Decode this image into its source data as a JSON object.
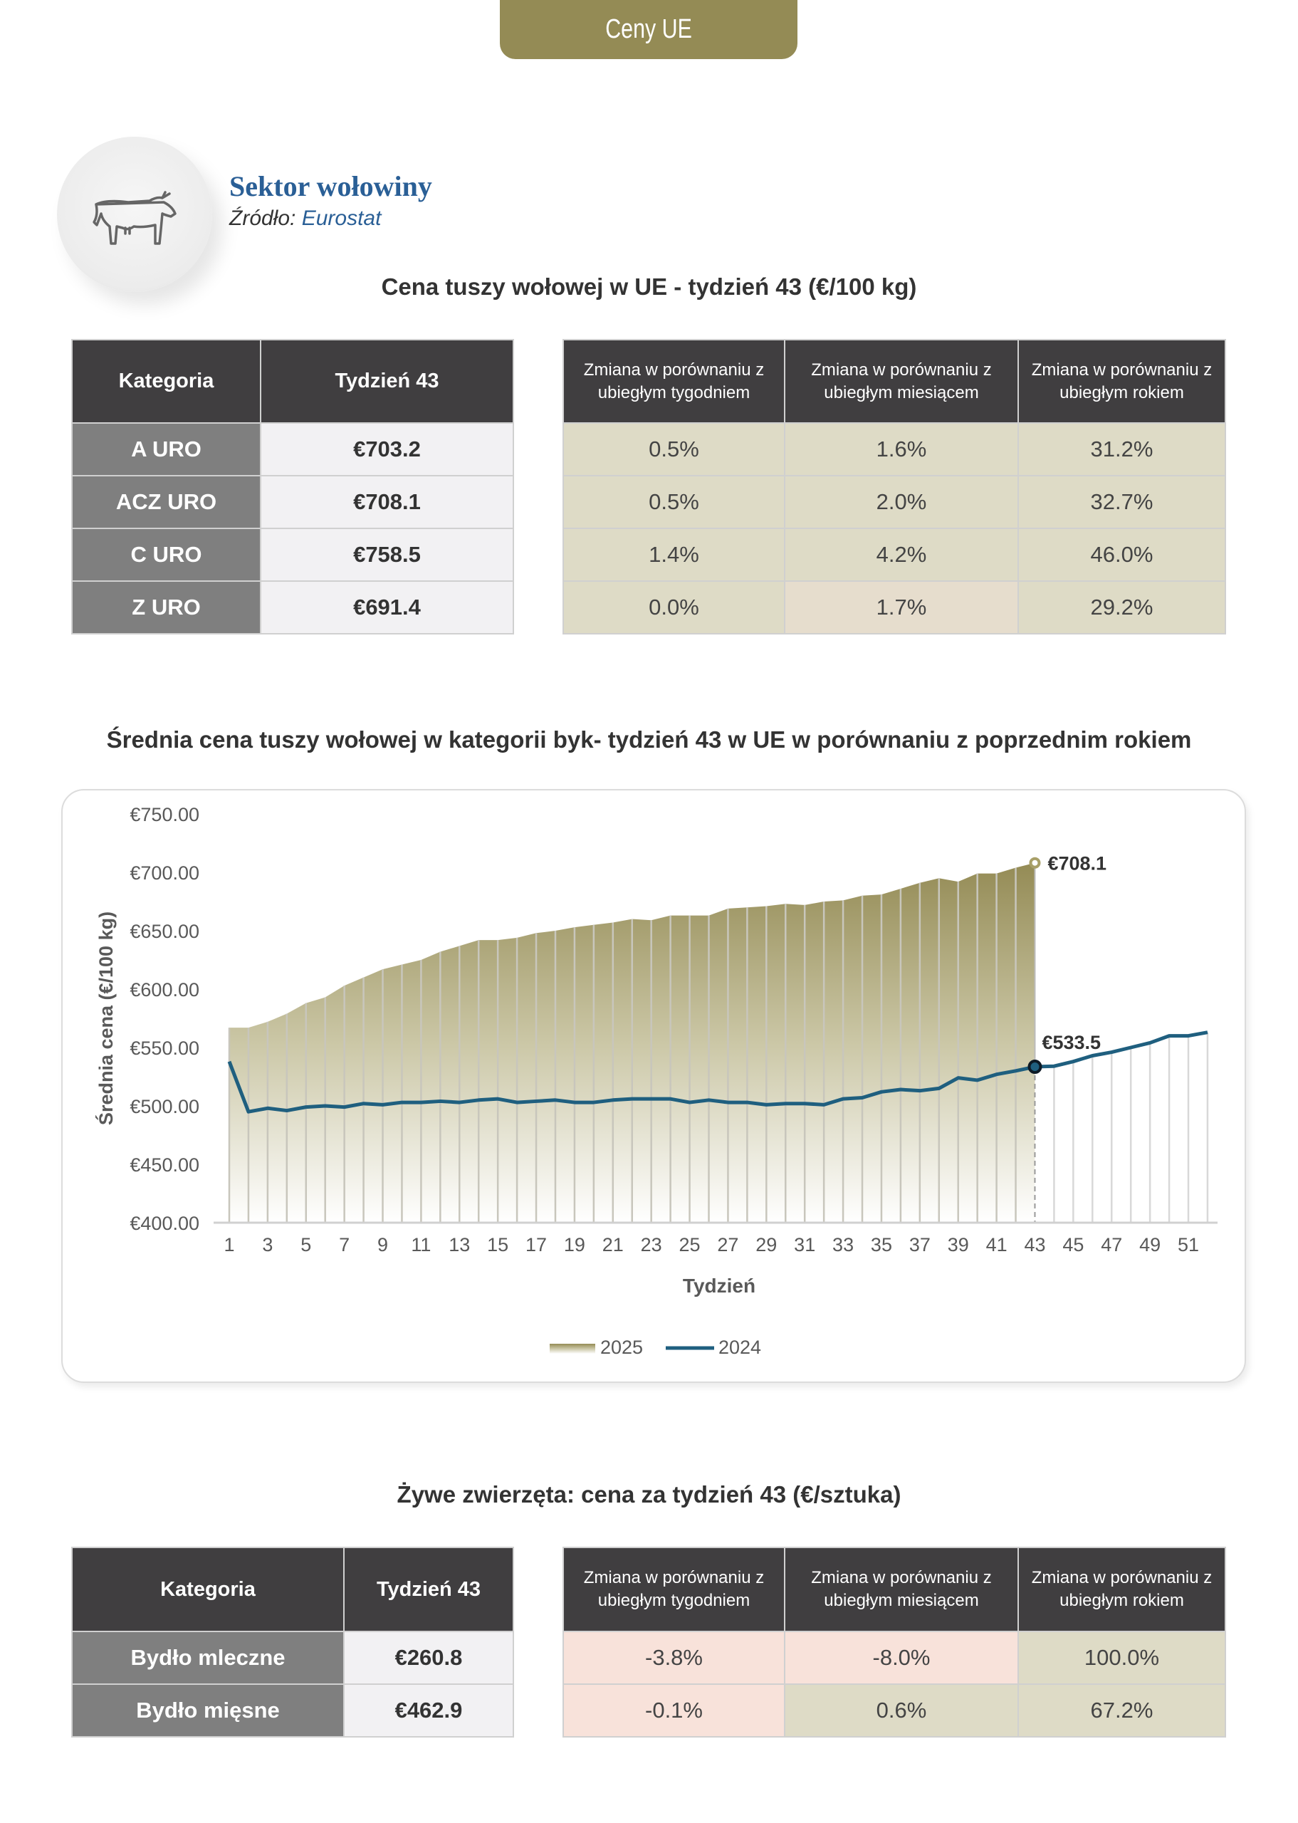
{
  "header": {
    "tab_label": "Ceny UE"
  },
  "sector": {
    "title": "Sektor wołowiny",
    "source_label": "Źródło:",
    "source_name": "Eurostat",
    "icon": "cow-icon"
  },
  "carcass_table": {
    "title": "Cena tuszy wołowej w UE - tydzień 43 (€/100 kg)",
    "headers": [
      "Kategoria",
      "Tydzień 43",
      "Zmiana w porównaniu z ubiegłym tygodniem",
      "Zmiana w porównaniu z ubiegłym miesiącem",
      "Zmiana w porównaniu z ubiegłym rokiem"
    ],
    "rows": [
      {
        "category": "A URO",
        "price": "€703.2",
        "week": "0.5%",
        "month": "1.6%",
        "year": "31.2%"
      },
      {
        "category": "ACZ URO",
        "price": "€708.1",
        "week": "0.5%",
        "month": "2.0%",
        "year": "32.7%"
      },
      {
        "category": "C URO",
        "price": "€758.5",
        "week": "1.4%",
        "month": "4.2%",
        "year": "46.0%"
      },
      {
        "category": "Z URO",
        "price": "€691.4",
        "week": "0.0%",
        "month": "1.7%",
        "year": "29.2%"
      }
    ]
  },
  "chart_data": {
    "type": "area+line",
    "title": "Średnia cena tuszy wołowej w kategorii byk- tydzień 43 w UE w porównaniu z poprzednim rokiem",
    "xlabel": "Tydzień",
    "ylabel": "Średnia cena (€/100 kg)",
    "ylim": [
      400,
      750
    ],
    "yticks": [
      "€400.00",
      "€450.00",
      "€500.00",
      "€550.00",
      "€600.00",
      "€650.00",
      "€700.00",
      "€750.00"
    ],
    "ytick_values": [
      400,
      450,
      500,
      550,
      600,
      650,
      700,
      750
    ],
    "xticks": [
      1,
      3,
      5,
      7,
      9,
      11,
      13,
      15,
      17,
      19,
      21,
      23,
      25,
      27,
      29,
      31,
      33,
      35,
      37,
      39,
      41,
      43,
      45,
      47,
      49,
      51
    ],
    "legend": [
      "2025",
      "2024"
    ],
    "legend_position": "bottom",
    "series": [
      {
        "name": "2025",
        "kind": "area",
        "color": "#948b55",
        "values": [
          567,
          567,
          572,
          579,
          588,
          593,
          603,
          610,
          617,
          621,
          625,
          632,
          637,
          642,
          642,
          644,
          648,
          650,
          653,
          655,
          657,
          660,
          659,
          663,
          663,
          663,
          669,
          670,
          671,
          673,
          672,
          675,
          676,
          680,
          681,
          686,
          691,
          695,
          692,
          699,
          699,
          704,
          708.1
        ]
      },
      {
        "name": "2024",
        "kind": "line",
        "color": "#1f5f7f",
        "values": [
          538,
          495,
          498,
          496,
          499,
          500,
          499,
          502,
          501,
          503,
          503,
          504,
          503,
          505,
          506,
          503,
          504,
          505,
          503,
          503,
          505,
          506,
          506,
          506,
          503,
          505,
          503,
          503,
          501,
          502,
          502,
          501,
          506,
          507,
          512,
          514,
          513,
          515,
          524,
          522,
          527,
          530,
          533.5,
          534,
          538,
          543,
          546,
          550,
          554,
          560,
          560,
          563
        ]
      }
    ],
    "annotations": [
      {
        "series": "2025",
        "week": 43,
        "label": "€708.1"
      },
      {
        "series": "2024",
        "week": 43,
        "label": "€533.5"
      }
    ]
  },
  "live_table": {
    "title": "Żywe zwierzęta: cena za tydzień 43 (€/sztuka)",
    "headers": [
      "Kategoria",
      "Tydzień 43",
      "Zmiana w porównaniu z ubiegłym tygodniem",
      "Zmiana w porównaniu z ubiegłym miesiącem",
      "Zmiana w porównaniu z ubiegłym rokiem"
    ],
    "rows": [
      {
        "category": "Bydło mleczne",
        "price": "€260.8",
        "week": "-3.8%",
        "month": "-8.0%",
        "year": "100.0%"
      },
      {
        "category": "Bydło mięsne",
        "price": "€462.9",
        "week": "-0.1%",
        "month": "0.6%",
        "year": "67.2%"
      }
    ]
  }
}
